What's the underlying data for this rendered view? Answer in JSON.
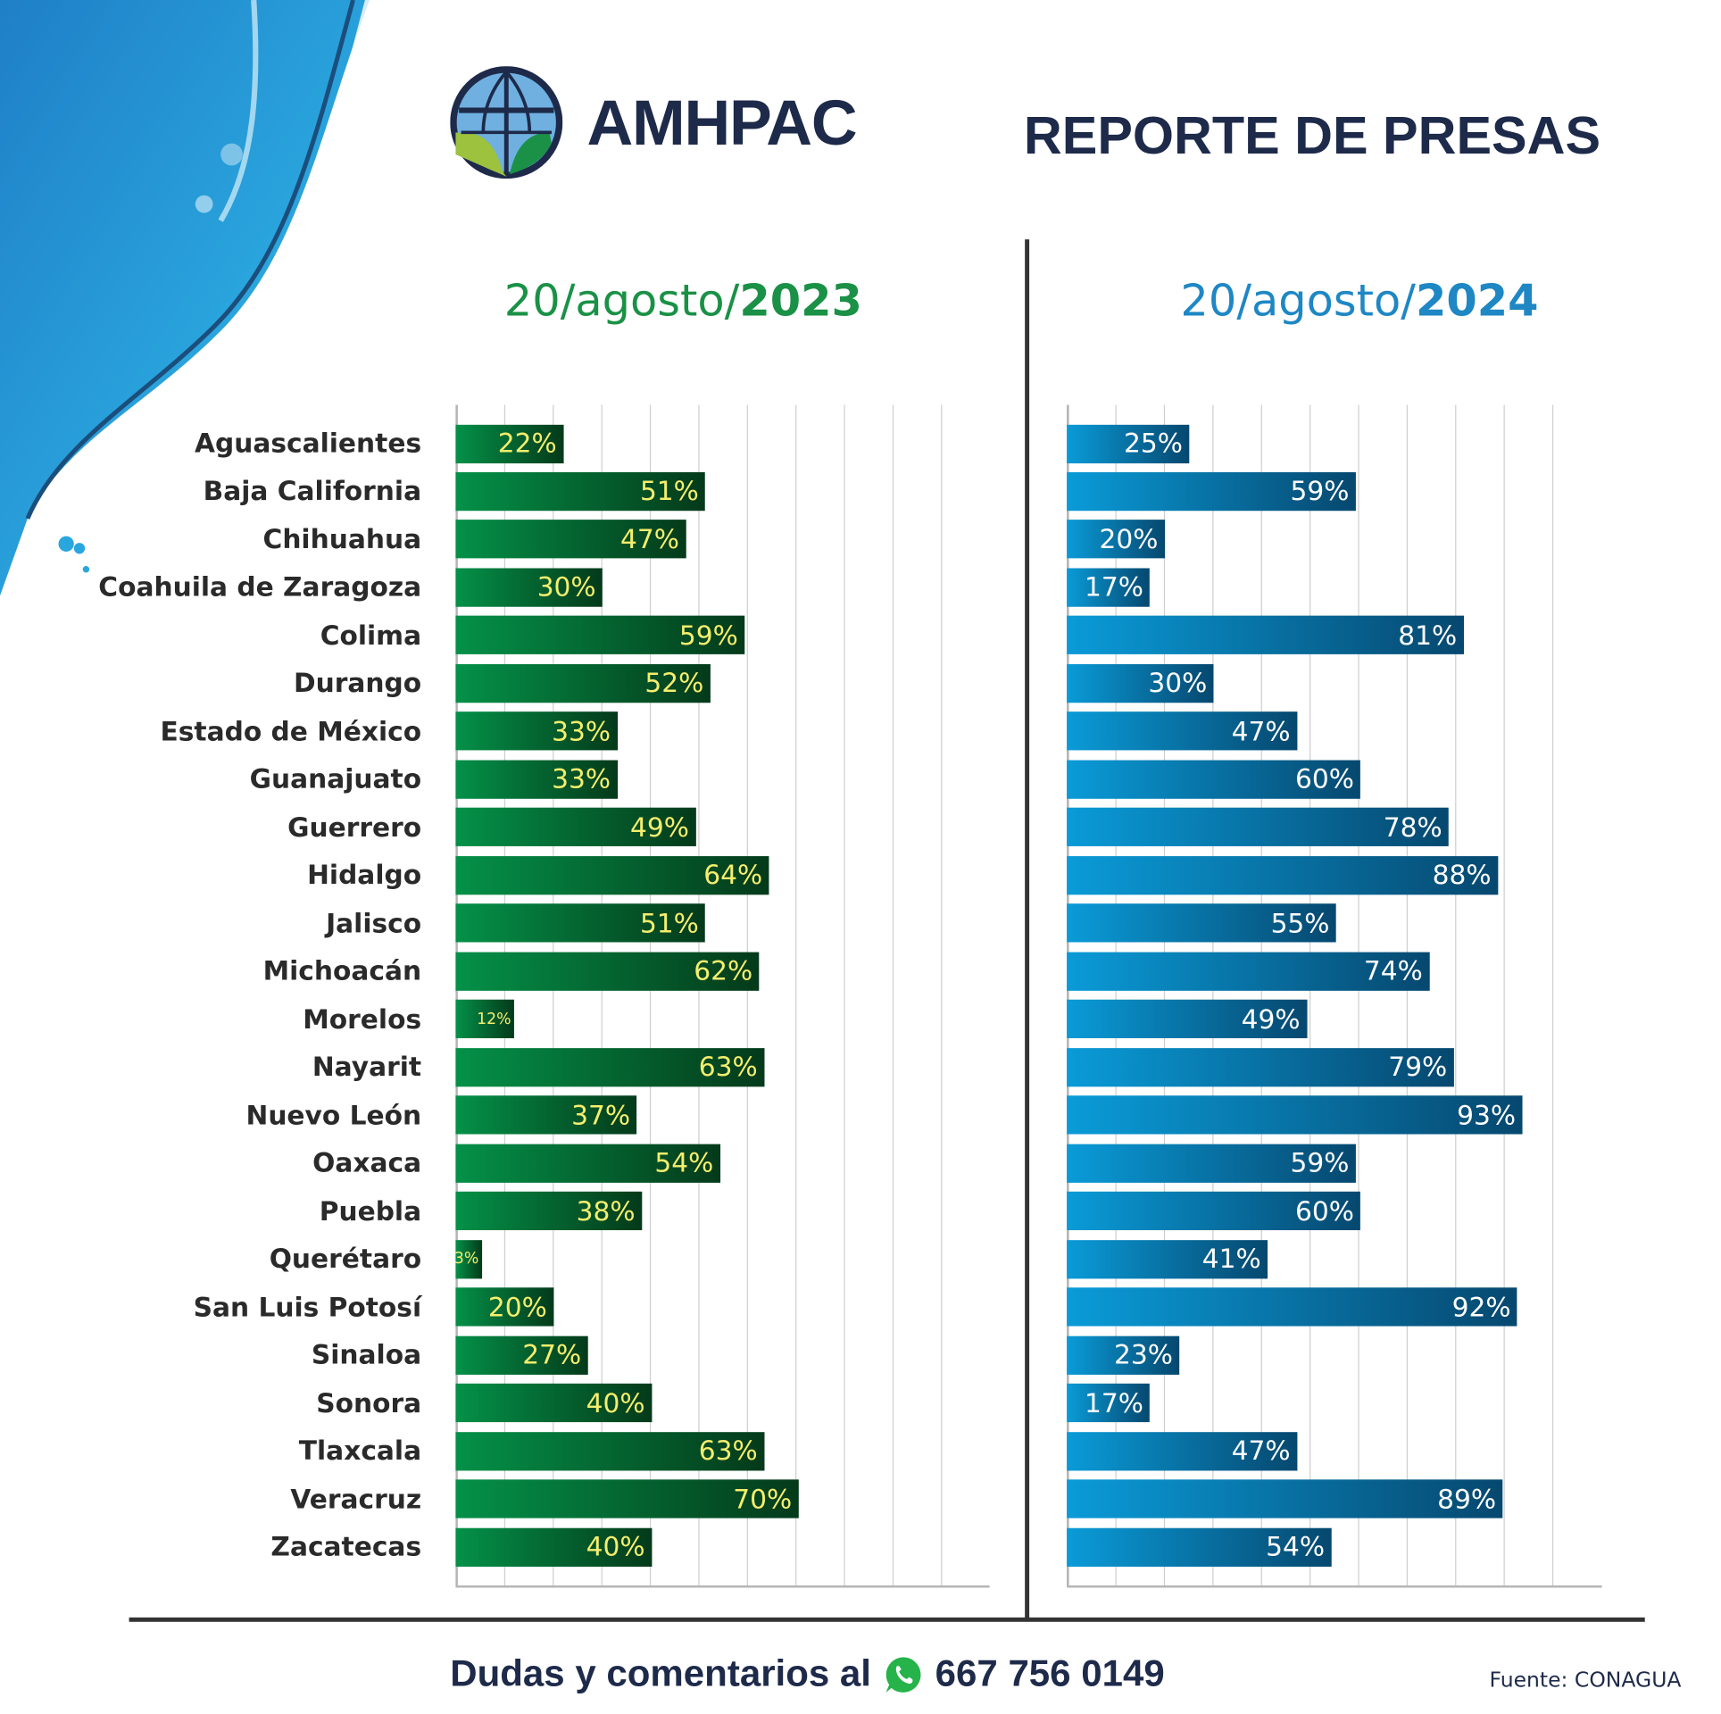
{
  "brand": "AMHPAC",
  "title": "REPORTE DE PRESAS",
  "colors": {
    "green": "#1a9146",
    "blue": "#1e87c4",
    "navy": "#1e2a4a",
    "value_text_left": "#f5ee6e",
    "value_text_right": "#ffffff"
  },
  "left_date": {
    "prefix": "20/agosto/",
    "year": "2023"
  },
  "right_date": {
    "prefix": "20/agosto/",
    "year": "2024"
  },
  "footer": {
    "text": "Dudas y comentarios al",
    "icon": "whatsapp-icon",
    "phone": "667 756 0149"
  },
  "source": "Fuente: CONAGUA",
  "chart_data": [
    {
      "type": "bar",
      "orientation": "horizontal",
      "title": "20/agosto/2023",
      "xlim": [
        0,
        100
      ],
      "grid": true,
      "categories": [
        "Aguascalientes",
        "Baja California",
        "Chihuahua",
        "Coahuila de Zaragoza",
        "Colima",
        "Durango",
        "Estado de México",
        "Guanajuato",
        "Guerrero",
        "Hidalgo",
        "Jalisco",
        "Michoacán",
        "Morelos",
        "Nayarit",
        "Nuevo León",
        "Oaxaca",
        "Puebla",
        "Querétaro",
        "San Luis Potosí",
        "Sinaloa",
        "Sonora",
        "Tlaxcala",
        "Veracruz",
        "Zacatecas"
      ],
      "values": [
        22,
        51,
        47,
        30,
        59,
        52,
        33,
        33,
        49,
        64,
        51,
        62,
        12,
        63,
        37,
        54,
        38,
        3,
        20,
        27,
        40,
        63,
        70,
        40
      ],
      "labels": [
        "22%",
        "51%",
        "47%",
        "30%",
        "59%",
        "52%",
        "33%",
        "33%",
        "49%",
        "64%",
        "51%",
        "62%",
        "12%",
        "63%",
        "37%",
        "54%",
        "38%",
        "3%",
        "20%",
        "27%",
        "40%",
        "63%",
        "70%",
        "40%"
      ]
    },
    {
      "type": "bar",
      "orientation": "horizontal",
      "title": "20/agosto/2024",
      "xlim": [
        0,
        100
      ],
      "grid": true,
      "categories": [
        "Aguascalientes",
        "Baja California",
        "Chihuahua",
        "Coahuila de Zaragoza",
        "Colima",
        "Durango",
        "Estado de México",
        "Guanajuato",
        "Guerrero",
        "Hidalgo",
        "Jalisco",
        "Michoacán",
        "Morelos",
        "Nayarit",
        "Nuevo León",
        "Oaxaca",
        "Puebla",
        "Querétaro",
        "San Luis Potosí",
        "Sinaloa",
        "Sonora",
        "Tlaxcala",
        "Veracruz",
        "Zacatecas"
      ],
      "values": [
        25,
        59,
        20,
        17,
        81,
        30,
        47,
        60,
        78,
        88,
        55,
        74,
        49,
        79,
        93,
        59,
        60,
        41,
        92,
        23,
        17,
        47,
        89,
        54
      ],
      "labels": [
        "25%",
        "59%",
        "20%",
        "17%",
        "81%",
        "30%",
        "47%",
        "60%",
        "78%",
        "88%",
        "55%",
        "74%",
        "49%",
        "79%",
        "93%",
        "59%",
        "60%",
        "41%",
        "92%",
        "23%",
        "17%",
        "47%",
        "89%",
        "54%"
      ]
    }
  ]
}
